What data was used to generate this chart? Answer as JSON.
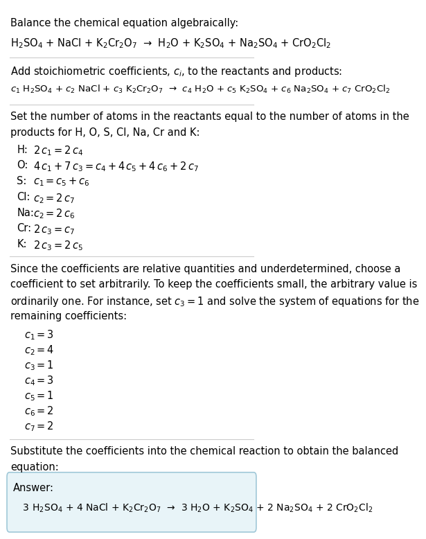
{
  "title_line1": "Balance the chemical equation algebraically:",
  "eq_unbalanced": "H$_2$SO$_4$ + NaCl + K$_2$Cr$_2$O$_7$  →  H$_2$O + K$_2$SO$_4$ + Na$_2$SO$_4$ + CrO$_2$Cl$_2$",
  "section2_intro": "Add stoichiometric coefficients, $c_i$, to the reactants and products:",
  "eq_coeffs": "$c_1$ H$_2$SO$_4$ + $c_2$ NaCl + $c_3$ K$_2$Cr$_2$O$_7$  →  $c_4$ H$_2$O + $c_5$ K$_2$SO$_4$ + $c_6$ Na$_2$SO$_4$ + $c_7$ CrO$_2$Cl$_2$",
  "section3_intro1": "Set the number of atoms in the reactants equal to the number of atoms in the",
  "section3_intro2": "products for H, O, S, Cl, Na, Cr and K:",
  "equations": [
    [
      "H:",
      "$2\\,c_1 = 2\\,c_4$"
    ],
    [
      "O:",
      "$4\\,c_1 + 7\\,c_3 = c_4 + 4\\,c_5 + 4\\,c_6 + 2\\,c_7$"
    ],
    [
      "S:",
      "$c_1 = c_5 + c_6$"
    ],
    [
      "Cl:",
      "$c_2 = 2\\,c_7$"
    ],
    [
      "Na:",
      "$c_2 = 2\\,c_6$"
    ],
    [
      "Cr:",
      "$2\\,c_3 = c_7$"
    ],
    [
      "K:",
      "$2\\,c_3 = 2\\,c_5$"
    ]
  ],
  "section4_intro1": "Since the coefficients are relative quantities and underdetermined, choose a",
  "section4_intro2": "coefficient to set arbitrarily. To keep the coefficients small, the arbitrary value is",
  "section4_intro3": "ordinarily one. For instance, set $c_3 = 1$ and solve the system of equations for the",
  "section4_intro4": "remaining coefficients:",
  "coeff_solutions": [
    "$c_1 = 3$",
    "$c_2 = 4$",
    "$c_3 = 1$",
    "$c_4 = 3$",
    "$c_5 = 1$",
    "$c_6 = 2$",
    "$c_7 = 2$"
  ],
  "section5_intro1": "Substitute the coefficients into the chemical reaction to obtain the balanced",
  "section5_intro2": "equation:",
  "answer_label": "Answer:",
  "eq_balanced": "  $3$ H$_2$SO$_4$ + $4$ NaCl + K$_2$Cr$_2$O$_7$  →  $3$ H$_2$O + K$_2$SO$_4$ + $2$ Na$_2$SO$_4$ + $2$ CrO$_2$Cl$_2$",
  "bg_color": "#ffffff",
  "text_color": "#000000",
  "box_bg_color": "#e8f4f8",
  "box_border_color": "#a0c8d8",
  "separator_color": "#cccccc",
  "font_size": 10.5,
  "small_font": 9.5
}
